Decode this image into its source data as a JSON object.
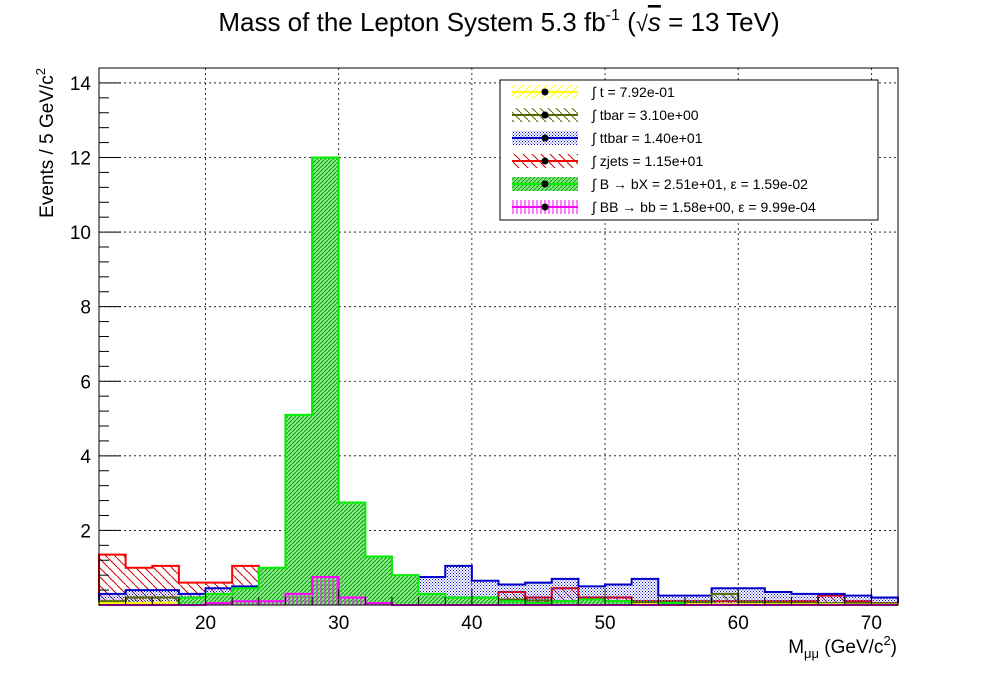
{
  "chart_data": {
    "type": "stacked-histogram",
    "title": {
      "main": "Mass of the Lepton System 5.3 fb",
      "sup": "-1",
      "open": " (",
      "sqrt": "√",
      "s": "s",
      "energy": " = 13 TeV)"
    },
    "xlabel": {
      "m": "M",
      "sub": "μμ",
      "unit": " (GeV/c",
      "sup": "2",
      "close": ")"
    },
    "ylabel": {
      "main": "Events / 5 GeV/c",
      "sup": "2"
    },
    "xlim": [
      12,
      72
    ],
    "ylim": [
      0,
      14.4
    ],
    "bin_width": 2,
    "bin_edges_start": 12,
    "x_ticks": [
      "20",
      "30",
      "40",
      "50",
      "60",
      "70"
    ],
    "x_tick_values": [
      20,
      30,
      40,
      50,
      60,
      70
    ],
    "y_ticks": [
      "2",
      "4",
      "6",
      "8",
      "10",
      "12",
      "14"
    ],
    "y_tick_values": [
      2,
      4,
      6,
      8,
      10,
      12,
      14
    ],
    "grid": true,
    "legend_position": "top-right",
    "series": [
      {
        "name": "t",
        "label": "∫ t = 7.92e-01",
        "color": "#ffff00",
        "hatch": "diag-up",
        "values": [
          0.05,
          0.05,
          0.06,
          0.05,
          0.05,
          0.06,
          0.07,
          0.06,
          0.07,
          0.09,
          0.08,
          0.06,
          0.05,
          0.05,
          0.04,
          0.04,
          0.04,
          0.03,
          0.03,
          0.03,
          0.02,
          0.02,
          0.02,
          0.02,
          0.02,
          0.02,
          0.02,
          0.02,
          0.01,
          0.01
        ]
      },
      {
        "name": "tbar",
        "label": "∫ tbar = 3.10e+00",
        "color": "#556b00",
        "hatch": "diag-down",
        "values": [
          0.1,
          0.2,
          0.2,
          0.15,
          0.2,
          0.3,
          0.45,
          0.65,
          0.55,
          0.6,
          0.3,
          0.25,
          0.2,
          0.2,
          0.15,
          0.15,
          0.12,
          0.1,
          0.1,
          0.1,
          0.08,
          0.08,
          0.08,
          0.3,
          0.08,
          0.07,
          0.06,
          0.05,
          0.05,
          0.04
        ]
      },
      {
        "name": "ttbar",
        "label": "∫ ttbar = 1.40e+01",
        "color": "#0000cc",
        "hatch": "dots",
        "values": [
          0.3,
          0.4,
          0.4,
          0.3,
          0.45,
          0.5,
          0.45,
          0.6,
          0.55,
          0.6,
          0.55,
          0.65,
          0.75,
          1.05,
          0.65,
          0.55,
          0.6,
          0.7,
          0.5,
          0.55,
          0.7,
          0.25,
          0.25,
          0.45,
          0.45,
          0.35,
          0.3,
          0.3,
          0.25,
          0.2
        ]
      },
      {
        "name": "zjets",
        "label": "∫ zjets = 1.15e+01",
        "color": "#ff0000",
        "hatch": "diag-down",
        "values": [
          1.35,
          1.0,
          1.05,
          0.6,
          0.6,
          1.05,
          0.75,
          0.35,
          0.35,
          0.3,
          0.25,
          0.2,
          0.15,
          0.1,
          0.1,
          0.35,
          0.2,
          0.45,
          0.2,
          0.2,
          0.1,
          0.1,
          0.1,
          0.1,
          0.1,
          0.1,
          0.1,
          0.25,
          0.1,
          0.05
        ]
      },
      {
        "name": "B to bX",
        "label": "∫ B → bX = 2.51e+01, ε = 1.59e-02",
        "color": "#00cc00",
        "edge": "#00ee00",
        "hatch": "dense",
        "values": [
          0.0,
          0.0,
          0.0,
          0.2,
          0.3,
          0.45,
          1.0,
          5.1,
          12.0,
          2.75,
          1.3,
          0.8,
          0.3,
          0.2,
          0.2,
          0.1,
          0.05,
          0.1,
          0.15,
          0.1,
          0.0,
          0.05,
          0.0,
          0.0,
          0.0,
          0.0,
          0.0,
          0.0,
          0.0,
          0.0
        ]
      },
      {
        "name": "BB to bb",
        "label": "∫ BB → bb = 1.58e+00, ε = 9.99e-04",
        "color": "#ff00ff",
        "hatch": "vertical",
        "values": [
          0.0,
          0.0,
          0.0,
          0.0,
          0.05,
          0.1,
          0.1,
          0.3,
          0.75,
          0.2,
          0.05,
          0.0,
          0.0,
          0.0,
          0.0,
          0.0,
          0.0,
          0.0,
          0.0,
          0.0,
          0.0,
          0.0,
          0.0,
          0.0,
          0.0,
          0.0,
          0.0,
          0.0,
          0.0,
          0.0
        ]
      }
    ]
  }
}
